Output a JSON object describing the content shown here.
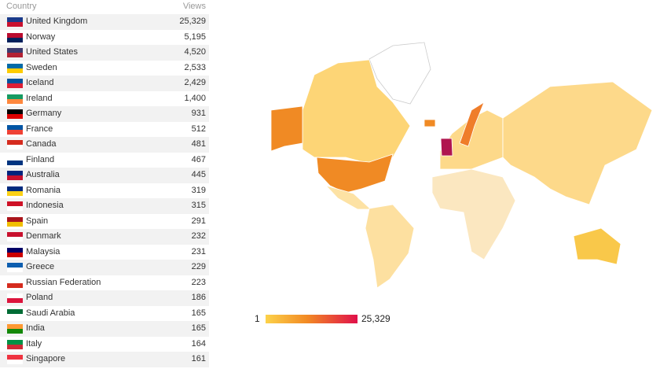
{
  "table": {
    "header": [
      "Country",
      "Views"
    ],
    "rows": [
      [
        "United Kingdom",
        "25,329"
      ],
      [
        "Norway",
        "5,195"
      ],
      [
        "United States",
        "4,520"
      ],
      [
        "Sweden",
        "2,533"
      ],
      [
        "Iceland",
        "2,429"
      ],
      [
        "Ireland",
        "1,400"
      ],
      [
        "Germany",
        "931"
      ],
      [
        "France",
        "512"
      ],
      [
        "Canada",
        "481"
      ],
      [
        "Finland",
        "467"
      ],
      [
        "Australia",
        "445"
      ],
      [
        "Romania",
        "319"
      ],
      [
        "Indonesia",
        "315"
      ],
      [
        "Spain",
        "291"
      ],
      [
        "Denmark",
        "232"
      ],
      [
        "Malaysia",
        "231"
      ],
      [
        "Greece",
        "229"
      ],
      [
        "Russian Federation",
        "223"
      ],
      [
        "Poland",
        "186"
      ],
      [
        "Saudi Arabia",
        "165"
      ],
      [
        "India",
        "165"
      ],
      [
        "Italy",
        "164"
      ],
      [
        "Singapore",
        "161"
      ]
    ]
  },
  "map_legend": {
    "min": "1",
    "max": "25,329"
  }
}
